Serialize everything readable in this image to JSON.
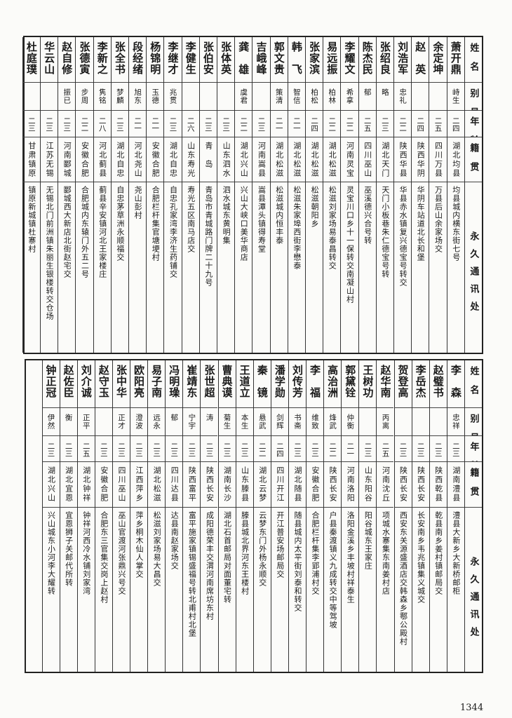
{
  "headers": {
    "name": "姓名",
    "alias": "别号",
    "age": "年龄",
    "native": "籍贯",
    "address": "永久通讯处"
  },
  "page_number": "1344",
  "top_table": {
    "rows": [
      {
        "name": "萧开鼎",
        "alias": "峙生",
        "age": "二四",
        "native": "湖北均县",
        "address": "均县城内横东街七号"
      },
      {
        "name": "余定坤",
        "alias": "",
        "age": "二五",
        "native": "四川万县",
        "address": "万县后山余家场交"
      },
      {
        "name": "赵　英",
        "alias": "",
        "age": "二四",
        "native": "陕西华阴",
        "address": "华阴车站道北长和堡"
      },
      {
        "name": "刘浩军",
        "alias": "忠礼",
        "age": "二二",
        "native": "陕西华县",
        "address": "华县赤水镇复兴德宝号转交"
      },
      {
        "name": "张绍良",
        "alias": "略",
        "age": "二三",
        "native": "湖北天门",
        "address": "天门小板巷朱仁德宝号转"
      },
      {
        "name": "陈杰民",
        "alias": "郁",
        "age": "二五",
        "native": "四川巫山",
        "address": "巫溪德兴合号转"
      },
      {
        "name": "李耀文",
        "alias": "希拿",
        "age": "二二",
        "native": "河南灵宝",
        "address": "灵宝川口乡十一保转交南凝山村"
      },
      {
        "name": "易远振",
        "alias": "柏林",
        "age": "二二",
        "native": "湖北松滋",
        "address": "松滋刘家场易泰昌转交"
      },
      {
        "name": "张家滨",
        "alias": "柏松",
        "age": "二四",
        "native": "湖北松滋",
        "address": "松滋朝阳乡"
      },
      {
        "name": "韩　飞",
        "alias": "智信",
        "age": "二一",
        "native": "湖北松滋",
        "address": "松滋朱家埠西街李懋泰"
      },
      {
        "name": "郭文贵",
        "alias": "策清",
        "age": "二一",
        "native": "湖北松滋",
        "address": "松滋城内恒丰泰"
      },
      {
        "name": "吉峨峰",
        "alias": "",
        "age": "二三",
        "native": "河南嵩县",
        "address": "嵩县潭头镇得寿堂"
      },
      {
        "name": "龚　雄",
        "alias": "虞君",
        "age": "二二",
        "native": "湖北兴山",
        "address": "兴山大峡口美华商店"
      },
      {
        "name": "张体英",
        "alias": "",
        "age": "二三",
        "native": "山东泗水",
        "address": "泗水城东黄明集"
      },
      {
        "name": "张伯安",
        "alias": "",
        "age": "二三",
        "native": "青　岛",
        "address": "青岛市青城路门牌二十九号"
      },
      {
        "name": "李健生",
        "alias": "",
        "age": "二六",
        "native": "山东寿光",
        "address": "寿光五区南马店交"
      },
      {
        "name": "李继才",
        "alias": "兆贯",
        "age": "二三",
        "native": "湖北自忠",
        "address": "自忠孔家湾李济生药铺交"
      },
      {
        "name": "杨锦明",
        "alias": "玉德",
        "age": "二一",
        "native": "安徽合肥",
        "address": "合肥栏杆集官塘埂村"
      },
      {
        "name": "段经绪",
        "alias": "旭东",
        "age": "二一",
        "native": "河北尧山",
        "address": "尧山彭村"
      },
      {
        "name": "张全书",
        "alias": "梦麟",
        "age": "二三",
        "native": "湖北自忠",
        "address": "自忠茅草洲永顺福交"
      },
      {
        "name": "李新之",
        "alias": "隽铭",
        "age": "二八",
        "native": "河北蓟县",
        "address": "蓟县辛安镇河北王家楼庄"
      },
      {
        "name": "张德寅",
        "alias": "步周",
        "age": "二二",
        "native": "安徽合肥",
        "address": "合肥城内东辕门外五二号"
      },
      {
        "name": "赵自修",
        "alias": "振已",
        "age": "二三",
        "native": "河南郾城",
        "address": "郾城西大新店北街赵宅交"
      },
      {
        "name": "华云山",
        "alias": "",
        "age": "二三",
        "native": "江苏无锡",
        "address": "无锡北门前洲镇朱丽生银楼转交仓场"
      },
      {
        "name": "杜庭璞",
        "alias": "",
        "age": "二三",
        "native": "甘肃镇原",
        "address": "镇原新城镇杜寨村"
      }
    ]
  },
  "bottom_table": {
    "rows": [
      {
        "name": "李　森",
        "alias": "忠祥",
        "age": "二三",
        "native": "湖南澧县",
        "address": "澧县大新乡大新桥邮柜"
      },
      {
        "name": "赵璧书",
        "alias": "",
        "age": "二三",
        "native": "陕西乾县",
        "address": "乾县南乡姜村镇邮局交"
      },
      {
        "name": "李岳杰",
        "alias": "",
        "age": "二三",
        "native": "陕西长安",
        "address": "长安南乡韦兆镇集义城交"
      },
      {
        "name": "贺登高",
        "alias": "",
        "age": "二三",
        "native": "陕西长安",
        "address": "西安东关源盛酒店交韩森乡鄠公殿村"
      },
      {
        "name": "赵华南",
        "alias": "丙离",
        "age": "二五",
        "native": "河南沈丘",
        "address": "项城水寨集东南姜村店"
      },
      {
        "name": "王树功",
        "alias": "",
        "age": "二三",
        "native": "山东阳谷",
        "address": "阳谷城东王家庄"
      },
      {
        "name": "郭黛铨",
        "alias": "仲衡",
        "age": "二一",
        "native": "河南洛阳",
        "address": "洛阳金溪乡丰坡村祥泰生"
      },
      {
        "name": "高治洲",
        "alias": "烽武",
        "age": "二二",
        "native": "陕西长安",
        "address": "户县秦渡镇义九成转交中等驾坡"
      },
      {
        "name": "李　福",
        "alias": "维致",
        "age": "二三",
        "native": "安徽合肥",
        "address": "合肥栏杆集李郢浦村交"
      },
      {
        "name": "刘传芳",
        "alias": "书斋",
        "age": "二三",
        "native": "湖北随县",
        "address": "随县城内太平街刘泰和转交"
      },
      {
        "name": "潘学勋",
        "alias": "剑辉",
        "age": "二四",
        "native": "四川开江",
        "address": "开江普安场邮局交"
      },
      {
        "name": "秦　镜",
        "alias": "悬武",
        "age": "二二",
        "native": "湖北云梦",
        "address": "云梦东门外杨永顺交"
      },
      {
        "name": "王道立",
        "alias": "本生",
        "age": "二三",
        "native": "山东滕县",
        "address": "滕县城北界河东王楼村"
      },
      {
        "name": "曹典谟",
        "alias": "菊生",
        "age": "二三",
        "native": "湖南长沙",
        "address": "湖北石首邮局对面董宅转"
      },
      {
        "name": "张世超",
        "alias": "涛",
        "age": "二三",
        "native": "陕西长安",
        "address": "成阳德荣丰交渭河南席坊东村"
      },
      {
        "name": "崔靖东",
        "alias": "宁宇",
        "age": "二三",
        "native": "陕西富平",
        "address": "富平施家镇锡盛福号转北甫村北堡"
      },
      {
        "name": "冯明璪",
        "alias": "郁",
        "age": "二三",
        "native": "四川达县",
        "address": "达县南赵家场交"
      },
      {
        "name": "易子南",
        "alias": "远永",
        "age": "二三",
        "native": "湖北松滋",
        "address": "松滋刘家场易大昌交"
      },
      {
        "name": "欧阳亮",
        "alias": "澄波",
        "age": "二三",
        "native": "江西萍乡",
        "address": "萍乡桐木仙人掌交"
      },
      {
        "name": "张中华",
        "alias": "正才",
        "age": "二三",
        "native": "四川巫山",
        "address": "巫山官渡河张鼎兴号交"
      },
      {
        "name": "赵守玉",
        "alias": "",
        "age": "二三",
        "native": "安徽合肥",
        "address": "合肥东三官集交岗上赵村"
      },
      {
        "name": "刘介诚",
        "alias": "正平",
        "age": "二五",
        "native": "湖北钟祥",
        "address": "钟祥河西冷水铺刘家湾"
      },
      {
        "name": "赵佐臣",
        "alias": "衡",
        "age": "二三",
        "native": "湖北宜恩",
        "address": "宜恩狮子关邮代所转"
      },
      {
        "name": "钟正冠",
        "alias": "伊然",
        "age": "二三",
        "native": "湖北兴山",
        "address": "兴山城东小河李大耀转"
      }
    ]
  }
}
